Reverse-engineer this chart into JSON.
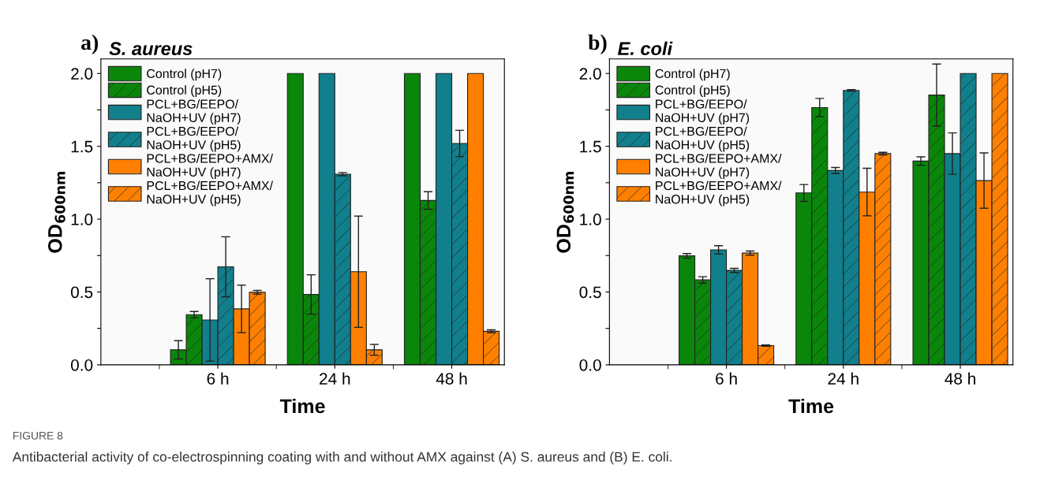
{
  "chart_data": [
    {
      "type": "bar",
      "title": "S. aureus",
      "xlabel": "Time",
      "ylabel": "OD$_{600nm}$",
      "categories": [
        "6 h",
        "24 h",
        "48 h"
      ],
      "series": [
        {
          "name": "Control (pH7)",
          "color": "#0a870a",
          "values": [
            0.103,
            2.0,
            2.0
          ],
          "errors": [
            0.063,
            null,
            null
          ]
        },
        {
          "name": "Control (pH5)",
          "color": "#0a870a",
          "values": [
            0.344,
            0.483,
            1.128
          ],
          "errors": [
            0.022,
            0.135,
            0.06
          ]
        },
        {
          "name": "PCL+BG/EEPO/\nNaOH+UV (pH7)",
          "color": "#117f8c",
          "values": [
            0.308,
            2.0,
            2.0
          ],
          "errors": [
            0.283,
            null,
            null
          ]
        },
        {
          "name": "PCL+BG/EEPO/\nNaOH+UV (pH5)",
          "color": "#117f8c",
          "values": [
            0.673,
            1.309,
            1.52
          ],
          "errors": [
            0.206,
            0.011,
            0.09
          ]
        },
        {
          "name": "PCL+BG/EEPO+AMX/\nNaOH+UV (pH7)",
          "color": "#ff8000",
          "values": [
            0.384,
            0.639,
            2.0
          ],
          "errors": [
            0.163,
            0.382,
            null
          ]
        },
        {
          "name": "PCL+BG/EEPO+AMX/\nNaOH+UV (pH5)",
          "color": "#ff8000",
          "values": [
            0.498,
            0.103,
            0.23
          ],
          "errors": [
            0.013,
            0.037,
            0.01
          ]
        }
      ],
      "ylim": [
        0,
        2.1
      ],
      "yticks": [
        {
          "value": 0.0,
          "label": "0.0"
        },
        {
          "value": 0.25,
          "label": null
        },
        {
          "value": 0.5,
          "label": "0.5"
        },
        {
          "value": 0.75,
          "label": null
        },
        {
          "value": 1.0,
          "label": "1.0"
        },
        {
          "value": 1.25,
          "label": null
        },
        {
          "value": 1.5,
          "label": "1.5"
        },
        {
          "value": 1.75,
          "label": null
        },
        {
          "value": 2.0,
          "label": "2.0"
        }
      ],
      "legend": "top left",
      "grid": false,
      "annotations": [
        "a)",
        "FIGURE 8",
        "Antibacterial activity of co-electrospinning coating with and without AMX against (A) S. aureus and (B) E. coli."
      ]
    },
    {
      "type": "bar",
      "title": "E. coli",
      "xlabel": "Time",
      "ylabel": "OD$_{600nm}$",
      "categories": [
        "6 h",
        "24 h",
        "48 h"
      ],
      "series": [
        {
          "name": "Control (pH7)",
          "color": "#0a870a",
          "values": [
            0.748,
            1.18,
            1.399
          ],
          "errors": [
            0.016,
            0.058,
            0.029
          ]
        },
        {
          "name": "Control (pH5)",
          "color": "#0a870a",
          "values": [
            0.583,
            1.766,
            1.852
          ],
          "errors": [
            0.022,
            0.063,
            0.213
          ]
        },
        {
          "name": "PCL+BG/EEPO/\nNaOH+UV (pH7)",
          "color": "#117f8c",
          "values": [
            0.789,
            1.334,
            1.45
          ],
          "errors": [
            0.029,
            0.021,
            0.142
          ]
        },
        {
          "name": "PCL+BG/EEPO/\nNaOH+UV (pH5)",
          "color": "#117f8c",
          "values": [
            0.648,
            1.884,
            2.0
          ],
          "errors": [
            0.014,
            0.005,
            null
          ]
        },
        {
          "name": "PCL+BG/EEPO+AMX/\nNaOH+UV (pH7)",
          "color": "#ff8000",
          "values": [
            0.767,
            1.186,
            1.265
          ],
          "errors": [
            0.014,
            0.163,
            0.19
          ]
        },
        {
          "name": "PCL+BG/EEPO+AMX/\nNaOH+UV (pH5)",
          "color": "#ff8000",
          "values": [
            0.132,
            1.45,
            2.0
          ],
          "errors": [
            0.004,
            0.009,
            null
          ]
        }
      ],
      "ylim": [
        0,
        2.1
      ],
      "yticks": [
        {
          "value": 0.0,
          "label": "0.0"
        },
        {
          "value": 0.25,
          "label": null
        },
        {
          "value": 0.5,
          "label": "0.5"
        },
        {
          "value": 0.75,
          "label": null
        },
        {
          "value": 1.0,
          "label": "1.0"
        },
        {
          "value": 1.25,
          "label": null
        },
        {
          "value": 1.5,
          "label": "1.5"
        },
        {
          "value": 1.75,
          "label": null
        },
        {
          "value": 2.0,
          "label": "2.0"
        }
      ],
      "legend": "top left",
      "grid": false,
      "annotations": [
        "b)"
      ]
    }
  ]
}
